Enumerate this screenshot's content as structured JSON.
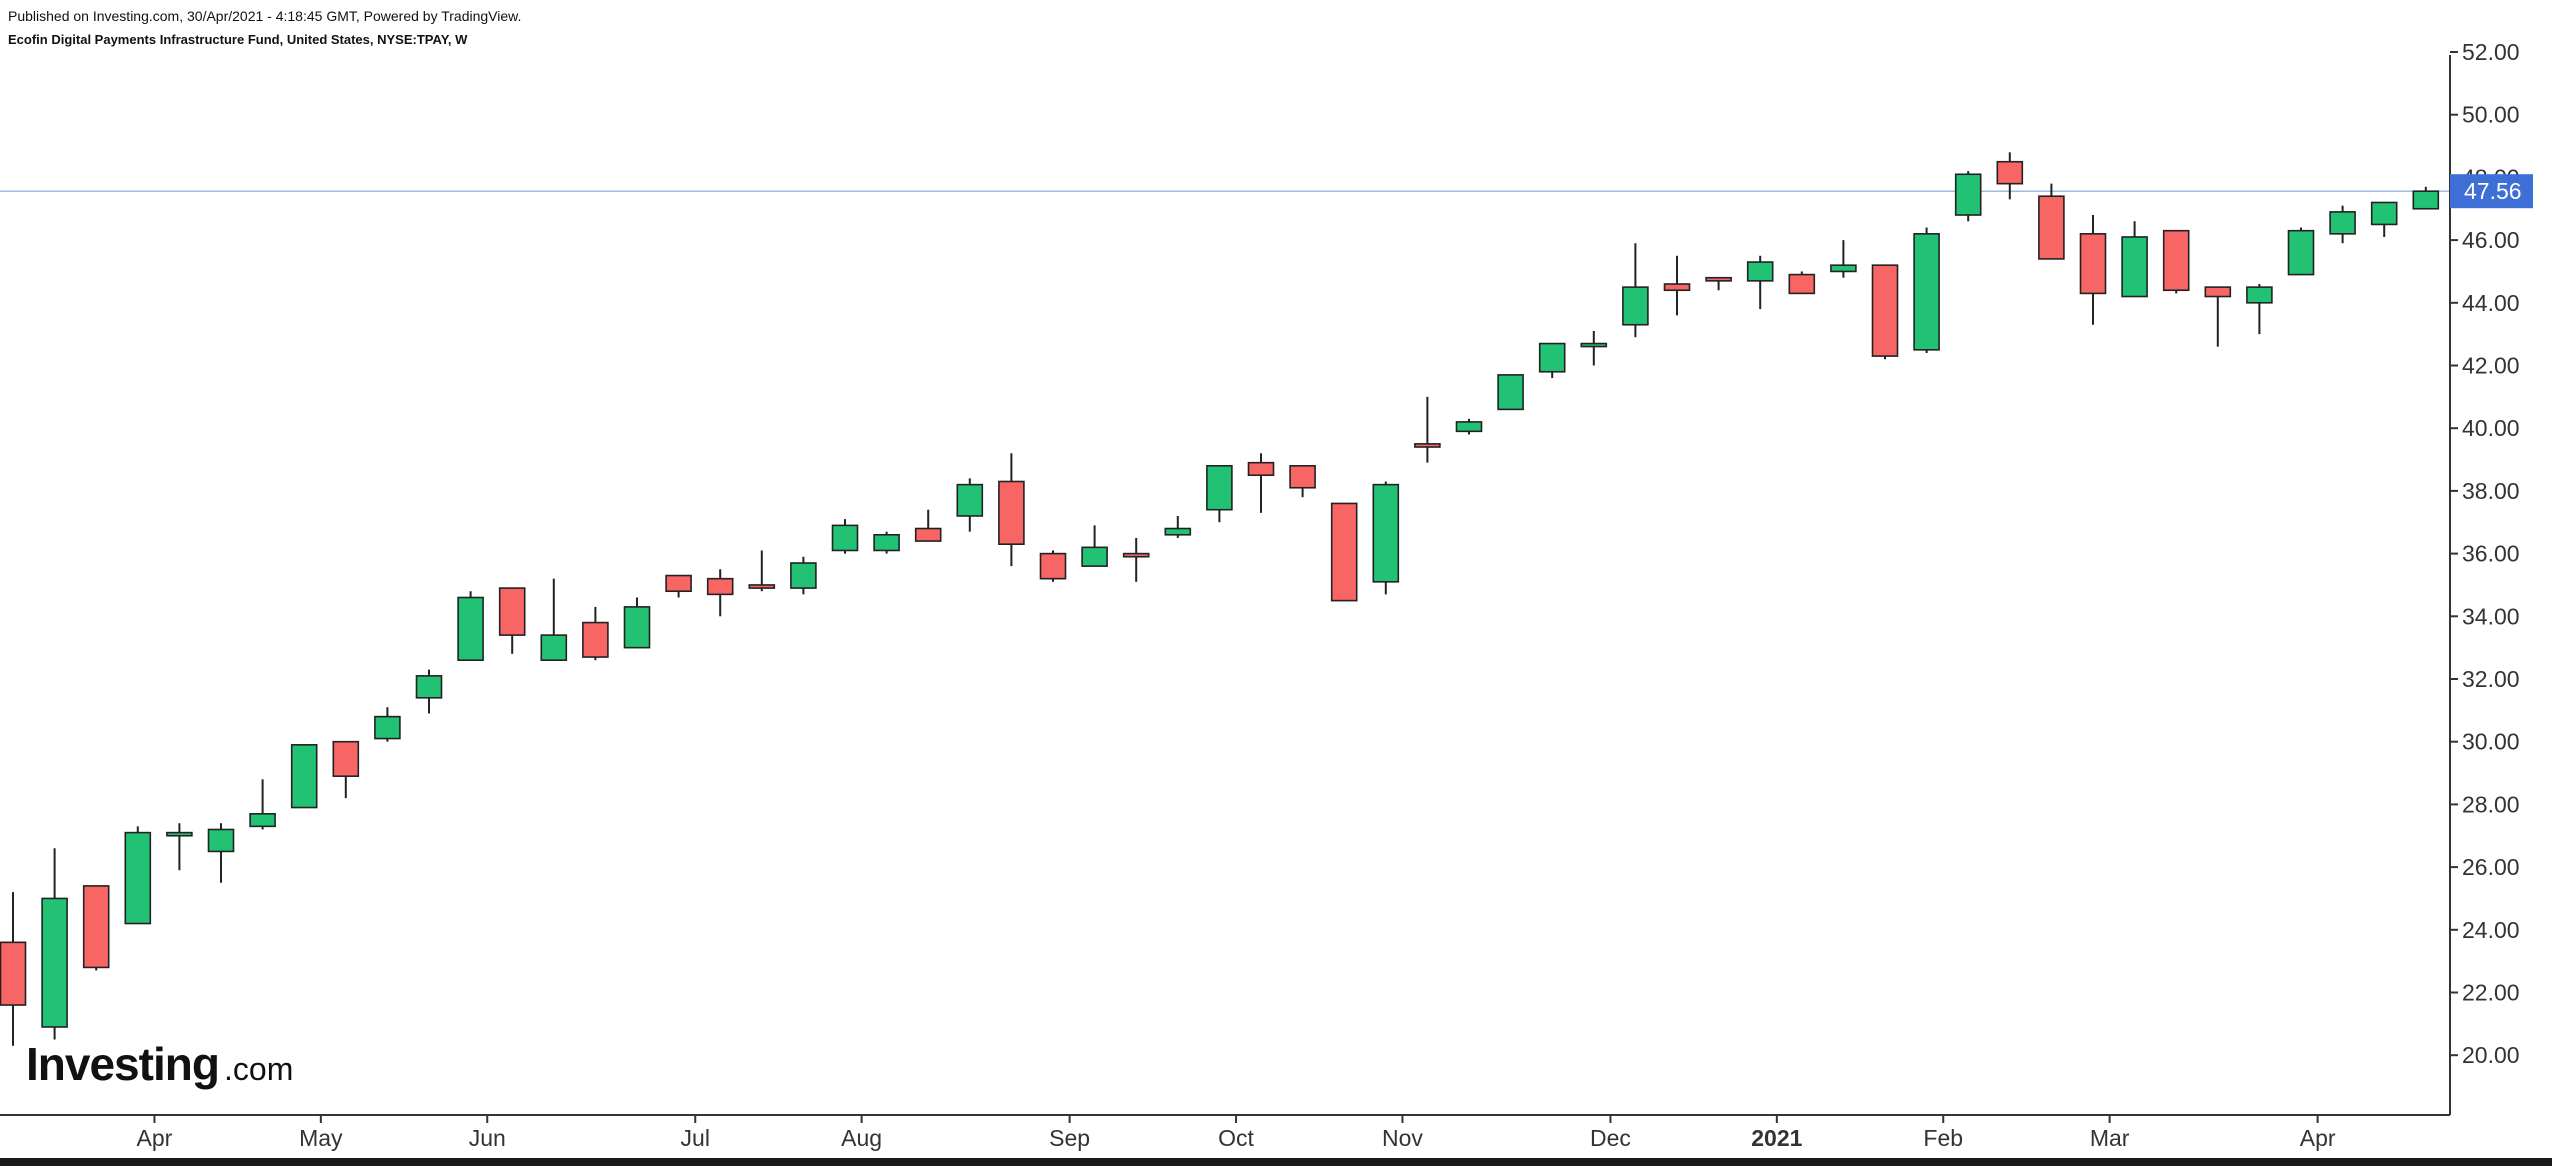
{
  "header": {
    "published": "Published on Investing.com, 30/Apr/2021 - 4:18:45 GMT, Powered by TradingView.",
    "instrument": "Ecofin Digital Payments Infrastructure Fund, United States, NYSE:TPAY, W"
  },
  "logo": {
    "main": "Investing",
    "suffix": ".com"
  },
  "colors": {
    "up": "#22c274",
    "down": "#f76565",
    "border": "#222222",
    "price_line": "#9dbde0",
    "price_label": "#3d6fd6",
    "axis": "#333333"
  },
  "chart_data": {
    "type": "candlestick",
    "title": "",
    "ylim": [
      18.5,
      52.5
    ],
    "y_ticks": [
      "20.00",
      "22.00",
      "24.00",
      "26.00",
      "28.00",
      "30.00",
      "32.00",
      "34.00",
      "36.00",
      "38.00",
      "40.00",
      "42.00",
      "44.00",
      "46.00",
      "48.00",
      "50.00",
      "52.00"
    ],
    "x_labels": [
      {
        "label": "Apr",
        "index": 3.4
      },
      {
        "label": "May",
        "index": 7.4
      },
      {
        "label": "Jun",
        "index": 11.4
      },
      {
        "label": "Jul",
        "index": 16.4
      },
      {
        "label": "Aug",
        "index": 20.4
      },
      {
        "label": "Sep",
        "index": 25.4
      },
      {
        "label": "Oct",
        "index": 29.4
      },
      {
        "label": "Nov",
        "index": 33.4
      },
      {
        "label": "Dec",
        "index": 38.4
      },
      {
        "label": "2021",
        "index": 42.4,
        "bold": true
      },
      {
        "label": "Feb",
        "index": 46.4
      },
      {
        "label": "Mar",
        "index": 50.4
      },
      {
        "label": "Apr",
        "index": 55.4
      }
    ],
    "last_price": 47.56,
    "last_price_label": "47.56",
    "candles": [
      {
        "o": 23.6,
        "h": 25.2,
        "l": 20.3,
        "c": 21.6
      },
      {
        "o": 20.9,
        "h": 26.6,
        "l": 20.5,
        "c": 25.0
      },
      {
        "o": 25.4,
        "h": 25.4,
        "l": 22.7,
        "c": 22.8
      },
      {
        "o": 24.2,
        "h": 27.3,
        "l": 24.2,
        "c": 27.1
      },
      {
        "o": 27.0,
        "h": 27.4,
        "l": 25.9,
        "c": 27.1
      },
      {
        "o": 26.5,
        "h": 27.4,
        "l": 25.5,
        "c": 27.2
      },
      {
        "o": 27.3,
        "h": 28.8,
        "l": 27.2,
        "c": 27.7
      },
      {
        "o": 27.9,
        "h": 29.9,
        "l": 27.9,
        "c": 29.9
      },
      {
        "o": 30.0,
        "h": 30.0,
        "l": 28.2,
        "c": 28.9
      },
      {
        "o": 30.1,
        "h": 31.1,
        "l": 30.0,
        "c": 30.8
      },
      {
        "o": 31.4,
        "h": 32.3,
        "l": 30.9,
        "c": 32.1
      },
      {
        "o": 32.6,
        "h": 34.8,
        "l": 32.6,
        "c": 34.6
      },
      {
        "o": 34.9,
        "h": 34.9,
        "l": 32.8,
        "c": 33.4
      },
      {
        "o": 32.6,
        "h": 35.2,
        "l": 32.6,
        "c": 33.4
      },
      {
        "o": 33.8,
        "h": 34.3,
        "l": 32.6,
        "c": 32.7
      },
      {
        "o": 33.0,
        "h": 34.6,
        "l": 33.0,
        "c": 34.3
      },
      {
        "o": 35.3,
        "h": 35.3,
        "l": 34.6,
        "c": 34.8
      },
      {
        "o": 35.2,
        "h": 35.5,
        "l": 34.0,
        "c": 34.7
      },
      {
        "o": 35.0,
        "h": 36.1,
        "l": 34.8,
        "c": 34.9
      },
      {
        "o": 34.9,
        "h": 35.9,
        "l": 34.7,
        "c": 35.7
      },
      {
        "o": 36.1,
        "h": 37.1,
        "l": 36.0,
        "c": 36.9
      },
      {
        "o": 36.1,
        "h": 36.7,
        "l": 36.0,
        "c": 36.6
      },
      {
        "o": 36.8,
        "h": 37.4,
        "l": 36.4,
        "c": 36.4
      },
      {
        "o": 37.2,
        "h": 38.4,
        "l": 36.7,
        "c": 38.2
      },
      {
        "o": 38.3,
        "h": 39.2,
        "l": 35.6,
        "c": 36.3
      },
      {
        "o": 36.0,
        "h": 36.1,
        "l": 35.1,
        "c": 35.2
      },
      {
        "o": 35.6,
        "h": 36.9,
        "l": 35.6,
        "c": 36.2
      },
      {
        "o": 36.0,
        "h": 36.5,
        "l": 35.1,
        "c": 35.9
      },
      {
        "o": 36.6,
        "h": 37.2,
        "l": 36.5,
        "c": 36.8
      },
      {
        "o": 37.4,
        "h": 38.8,
        "l": 37.0,
        "c": 38.8
      },
      {
        "o": 38.9,
        "h": 39.2,
        "l": 37.3,
        "c": 38.5
      },
      {
        "o": 38.8,
        "h": 38.8,
        "l": 37.8,
        "c": 38.1
      },
      {
        "o": 37.6,
        "h": 37.6,
        "l": 34.5,
        "c": 34.5
      },
      {
        "o": 35.1,
        "h": 38.3,
        "l": 34.7,
        "c": 38.2
      },
      {
        "o": 39.5,
        "h": 41.0,
        "l": 38.9,
        "c": 39.4
      },
      {
        "o": 39.9,
        "h": 40.3,
        "l": 39.8,
        "c": 40.2
      },
      {
        "o": 40.6,
        "h": 41.7,
        "l": 40.6,
        "c": 41.7
      },
      {
        "o": 41.8,
        "h": 42.7,
        "l": 41.6,
        "c": 42.7
      },
      {
        "o": 42.7,
        "h": 43.1,
        "l": 42.0,
        "c": 42.7
      },
      {
        "o": 43.3,
        "h": 45.9,
        "l": 42.9,
        "c": 44.5
      },
      {
        "o": 44.6,
        "h": 45.5,
        "l": 43.6,
        "c": 44.4
      },
      {
        "o": 44.8,
        "h": 44.8,
        "l": 44.4,
        "c": 44.7
      },
      {
        "o": 44.7,
        "h": 45.5,
        "l": 43.8,
        "c": 45.3
      },
      {
        "o": 44.9,
        "h": 45.0,
        "l": 44.3,
        "c": 44.3
      },
      {
        "o": 45.0,
        "h": 46.0,
        "l": 44.8,
        "c": 45.2
      },
      {
        "o": 45.2,
        "h": 45.2,
        "l": 42.2,
        "c": 42.3
      },
      {
        "o": 42.5,
        "h": 46.4,
        "l": 42.4,
        "c": 46.2
      },
      {
        "o": 46.8,
        "h": 48.2,
        "l": 46.6,
        "c": 48.1
      },
      {
        "o": 48.5,
        "h": 48.8,
        "l": 47.3,
        "c": 47.8
      },
      {
        "o": 47.4,
        "h": 47.8,
        "l": 45.4,
        "c": 45.4
      },
      {
        "o": 46.2,
        "h": 46.8,
        "l": 43.3,
        "c": 44.3
      },
      {
        "o": 44.2,
        "h": 46.6,
        "l": 44.2,
        "c": 46.1
      },
      {
        "o": 46.3,
        "h": 46.3,
        "l": 44.3,
        "c": 44.4
      },
      {
        "o": 44.5,
        "h": 44.5,
        "l": 42.6,
        "c": 44.2
      },
      {
        "o": 44.0,
        "h": 44.6,
        "l": 43.0,
        "c": 44.5
      },
      {
        "o": 44.9,
        "h": 46.4,
        "l": 44.9,
        "c": 46.3
      },
      {
        "o": 46.2,
        "h": 47.1,
        "l": 45.9,
        "c": 46.9
      },
      {
        "o": 46.5,
        "h": 47.2,
        "l": 46.1,
        "c": 47.2
      },
      {
        "o": 47.0,
        "h": 47.7,
        "l": 47.0,
        "c": 47.56
      }
    ]
  }
}
